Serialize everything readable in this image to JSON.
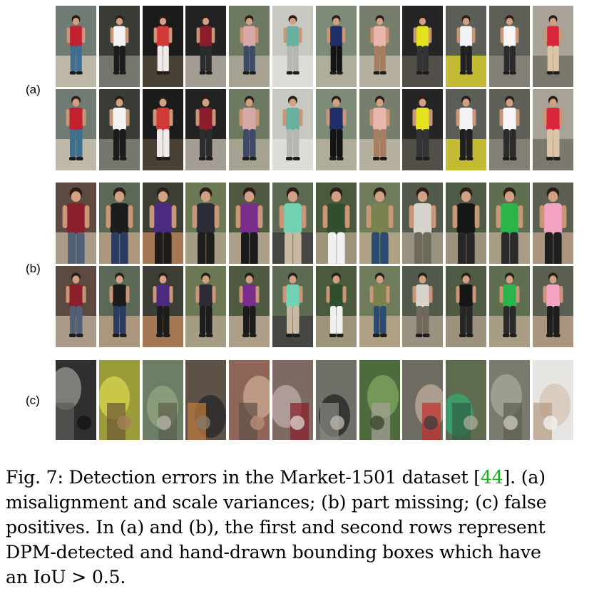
{
  "figure": {
    "groups": [
      {
        "label": "(a)",
        "rows": 2
      },
      {
        "label": "(b)",
        "rows": 2
      },
      {
        "label": "(c)",
        "rows": 1
      }
    ],
    "columns": 12,
    "palettes": {
      "a": [
        [
          "#6f7b73",
          "#c3202f",
          "#3f6e90",
          "#d9cdbb"
        ],
        [
          "#3a3d36",
          "#f2f2f2",
          "#1c1c1c",
          "#8a8a82"
        ],
        [
          "#1b1b1b",
          "#d23a3a",
          "#f1eaea",
          "#5b4f3f"
        ],
        [
          "#222222",
          "#8b1e2a",
          "#2c2c2c",
          "#cfc7bb"
        ],
        [
          "#6d7a61",
          "#d6a9a6",
          "#3d4b68",
          "#b9b1a3"
        ],
        [
          "#c8c8c3",
          "#69b0a1",
          "#b7b7b2",
          "#e5e5e0"
        ],
        [
          "#7d8b77",
          "#1f2f6a",
          "#141414",
          "#c2b8a6"
        ],
        [
          "#787e6c",
          "#e8b6ad",
          "#a87d60",
          "#c9c1b1"
        ],
        [
          "#252525",
          "#e4e21f",
          "#333333",
          "#605d53"
        ],
        [
          "#5b5f58",
          "#f3f3f3",
          "#202020",
          "#e6d928"
        ],
        [
          "#5e6058",
          "#f6f6f6",
          "#2b2b2b",
          "#8d8a80"
        ],
        [
          "#a8a396",
          "#d9263b",
          "#dcc4a6",
          "#6c6a60"
        ]
      ],
      "b": [
        [
          "#5c4a41",
          "#8c1f2c",
          "#526076",
          "#c4b7a0"
        ],
        [
          "#5a6855",
          "#1c1c1c",
          "#2b3c63",
          "#c7a78b"
        ],
        [
          "#3c3d33",
          "#4b2a7f",
          "#1c1c1c",
          "#c88c62"
        ],
        [
          "#6b7a55",
          "#2d2b36",
          "#1d1d1d",
          "#b9a893"
        ],
        [
          "#4f5a40",
          "#7a2e8c",
          "#1b1b1b",
          "#ccb79f"
        ],
        [
          "#5d6a52",
          "#72d1b3",
          "#c9b8a2",
          "#3c3c3c"
        ],
        [
          "#4b5a3c",
          "#2f4f2f",
          "#f0f0f0",
          "#b9a892"
        ],
        [
          "#6f7c5c",
          "#7a8250",
          "#2c4b72",
          "#c4ae92"
        ],
        [
          "#525a4c",
          "#d8d4cc",
          "#6d6a5c",
          "#b2a592"
        ],
        [
          "#4f5b45",
          "#161616",
          "#262626",
          "#b5a490"
        ],
        [
          "#5f6e50",
          "#2bb44a",
          "#2a2a2a",
          "#c2ae98"
        ],
        [
          "#5a5f52",
          "#f3a4c2",
          "#1e1e1e",
          "#c5a58c"
        ]
      ],
      "c": [
        [
          "#2f2f2f",
          "#8b8b86",
          "#5b5b55",
          "#141414"
        ],
        [
          "#9c9b3a",
          "#d1cf4c",
          "#6b5535",
          "#a57f5b"
        ],
        [
          "#6c7e65",
          "#8ea07d",
          "#5a5f4a",
          "#b4b3a6"
        ],
        [
          "#5d5245",
          "#2c2c2c",
          "#c07e3e",
          "#897b67"
        ],
        [
          "#8f6558",
          "#c6a18c",
          "#5e5047",
          "#b88c79"
        ],
        [
          "#7c6a63",
          "#b9a5a2",
          "#8c1d2b",
          "#d7ccc7"
        ],
        [
          "#6f7168",
          "#2b2b2b",
          "#898a82",
          "#b8b5ab"
        ],
        [
          "#4e6b3d",
          "#7ba05d",
          "#a5a39a",
          "#384a2a"
        ],
        [
          "#6e6b62",
          "#b7a496",
          "#c42c2c",
          "#3d3d3d"
        ],
        [
          "#5f6b4f",
          "#3aa16c",
          "#2f5e46",
          "#a8a899"
        ],
        [
          "#7a7b6f",
          "#a3a596",
          "#5b5e4f",
          "#c9c6b8"
        ],
        [
          "#e7e5e2",
          "#d7c9b8",
          "#b59b80",
          "#f2f1ef"
        ]
      ]
    }
  },
  "caption": {
    "line1_a": "Fig. 7: Detection errors in the Market-1501 dataset [",
    "cite": "44",
    "line1_b": "]. (a)",
    "line2": "misalignment and scale variances; (b) part missing; (c) false",
    "line3": "positives. In (a) and (b), the first and second rows represent",
    "line4": "DPM-detected and hand-drawn bounding boxes which have",
    "line5": "an IoU > 0.5."
  }
}
